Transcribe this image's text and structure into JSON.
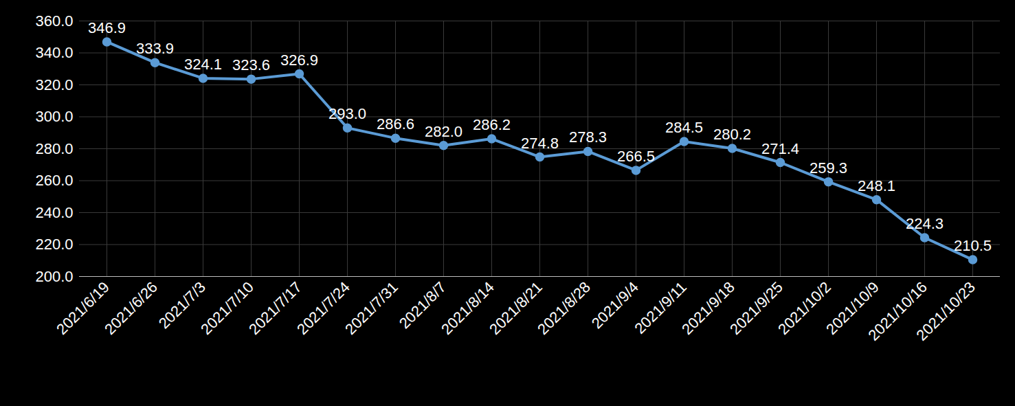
{
  "chart_data": {
    "type": "line",
    "categories": [
      "2021/6/19",
      "2021/6/26",
      "2021/7/3",
      "2021/7/10",
      "2021/7/17",
      "2021/7/24",
      "2021/7/31",
      "2021/8/7",
      "2021/8/14",
      "2021/8/21",
      "2021/8/28",
      "2021/9/4",
      "2021/9/11",
      "2021/9/18",
      "2021/9/25",
      "2021/10/2",
      "2021/10/9",
      "2021/10/16",
      "2021/10/23"
    ],
    "values": [
      346.9,
      333.9,
      324.1,
      323.6,
      326.9,
      293.0,
      286.6,
      282.0,
      286.2,
      274.8,
      278.3,
      266.5,
      284.5,
      280.2,
      271.4,
      259.3,
      248.1,
      224.3,
      210.5
    ],
    "value_labels": [
      "346.9",
      "333.9",
      "324.1",
      "323.6",
      "326.9",
      "293.0",
      "286.6",
      "282.0",
      "286.2",
      "274.8",
      "278.3",
      "266.5",
      "284.5",
      "280.2",
      "271.4",
      "259.3",
      "248.1",
      "224.3",
      "210.5"
    ],
    "color": "#5b9bd5",
    "marker": "circle",
    "data_labels": true,
    "grid": true,
    "ylim": [
      200,
      360
    ],
    "yticks": [
      {
        "value": 200,
        "label": "200.0"
      },
      {
        "value": 220,
        "label": "220.0"
      },
      {
        "value": 240,
        "label": "240.0"
      },
      {
        "value": 260,
        "label": "260.0"
      },
      {
        "value": 280,
        "label": "280.0"
      },
      {
        "value": 300,
        "label": "300.0"
      },
      {
        "value": 320,
        "label": "320.0"
      },
      {
        "value": 340,
        "label": "340.0"
      },
      {
        "value": 360,
        "label": "360.0"
      }
    ]
  }
}
